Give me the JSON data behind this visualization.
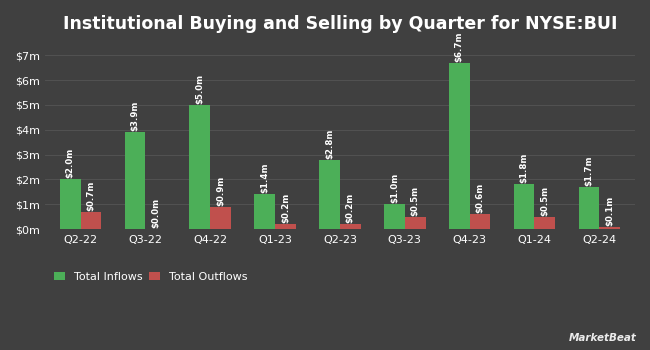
{
  "title": "Institutional Buying and Selling by Quarter for NYSE:BUI",
  "quarters": [
    "Q2-22",
    "Q3-22",
    "Q4-22",
    "Q1-23",
    "Q2-23",
    "Q3-23",
    "Q4-23",
    "Q1-24",
    "Q2-24"
  ],
  "inflows": [
    2.0,
    3.9,
    5.0,
    1.4,
    2.8,
    1.0,
    6.7,
    1.8,
    1.7
  ],
  "outflows": [
    0.7,
    0.0,
    0.9,
    0.2,
    0.2,
    0.5,
    0.6,
    0.5,
    0.1
  ],
  "inflow_labels": [
    "$2.0m",
    "$3.9m",
    "$5.0m",
    "$1.4m",
    "$2.8m",
    "$1.0m",
    "$6.7m",
    "$1.8m",
    "$1.7m"
  ],
  "outflow_labels": [
    "$0.7m",
    "$0.0m",
    "$0.9m",
    "$0.2m",
    "$0.2m",
    "$0.5m",
    "$0.6m",
    "$0.5m",
    "$0.1m"
  ],
  "inflow_color": "#4caf58",
  "outflow_color": "#c0504d",
  "background_color": "#404040",
  "plot_bg_color": "#404040",
  "text_color": "#ffffff",
  "grid_color": "#555555",
  "ylim": [
    0,
    7.5
  ],
  "yticks": [
    0,
    1,
    2,
    3,
    4,
    5,
    6,
    7
  ],
  "bar_width": 0.32,
  "legend_inflow": "Total Inflows",
  "legend_outflow": "Total Outflows",
  "title_fontsize": 12.5,
  "label_fontsize": 6.2,
  "tick_fontsize": 8,
  "legend_fontsize": 8
}
